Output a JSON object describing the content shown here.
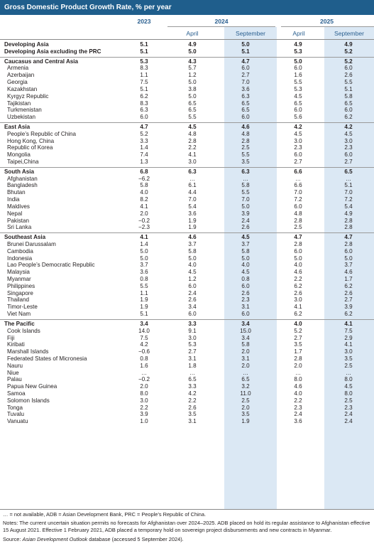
{
  "title": "Gross Domestic Product Growth Rate, % per year",
  "header": {
    "year_2023": "2023",
    "year_2024": "2024",
    "year_2025": "2025",
    "april_2024": "April",
    "september_2024": "September",
    "april_2025": "April",
    "september_2025": "September"
  },
  "groups": [
    {
      "rows": [
        {
          "name": "Developing Asia",
          "bold": true,
          "values": [
            "5.1",
            "4.9",
            "5.0",
            "4.9",
            "4.9"
          ]
        },
        {
          "name": "Developing Asia excluding the PRC",
          "bold": true,
          "values": [
            "5.1",
            "5.0",
            "5.1",
            "5.3",
            "5.2"
          ]
        }
      ]
    },
    {
      "rows": [
        {
          "name": "Caucasus and Central Asia",
          "bold": true,
          "values": [
            "5.3",
            "4.3",
            "4.7",
            "5.0",
            "5.2"
          ]
        },
        {
          "name": "Armenia",
          "values": [
            "8.3",
            "5.7",
            "6.0",
            "6.0",
            "6.0"
          ]
        },
        {
          "name": "Azerbaijan",
          "values": [
            "1.1",
            "1.2",
            "2.7",
            "1.6",
            "2.6"
          ]
        },
        {
          "name": "Georgia",
          "values": [
            "7.5",
            "5.0",
            "7.0",
            "5.5",
            "5.5"
          ]
        },
        {
          "name": "Kazakhstan",
          "values": [
            "5.1",
            "3.8",
            "3.6",
            "5.3",
            "5.1"
          ]
        },
        {
          "name": "Kyrgyz Republic",
          "values": [
            "6.2",
            "5.0",
            "6.3",
            "4.5",
            "5.8"
          ]
        },
        {
          "name": "Tajikistan",
          "values": [
            "8.3",
            "6.5",
            "6.5",
            "6.5",
            "6.5"
          ]
        },
        {
          "name": "Turkmenistan",
          "values": [
            "6.3",
            "6.5",
            "6.5",
            "6.0",
            "6.0"
          ]
        },
        {
          "name": "Uzbekistan",
          "values": [
            "6.0",
            "5.5",
            "6.0",
            "5.6",
            "6.2"
          ]
        }
      ]
    },
    {
      "rows": [
        {
          "name": "East Asia",
          "bold": true,
          "values": [
            "4.7",
            "4.5",
            "4.6",
            "4.2",
            "4.2"
          ]
        },
        {
          "name": "People’s Republic of China",
          "values": [
            "5.2",
            "4.8",
            "4.8",
            "4.5",
            "4.5"
          ]
        },
        {
          "name": "Hong Kong, China",
          "values": [
            "3.3",
            "2.8",
            "2.8",
            "3.0",
            "3.0"
          ]
        },
        {
          "name": "Republic of Korea",
          "values": [
            "1.4",
            "2.2",
            "2.5",
            "2.3",
            "2.3"
          ]
        },
        {
          "name": "Mongolia",
          "values": [
            "7.4",
            "4.1",
            "5.5",
            "6.0",
            "6.0"
          ]
        },
        {
          "name": "Taipei,China",
          "values": [
            "1.3",
            "3.0",
            "3.5",
            "2.7",
            "2.7"
          ]
        }
      ]
    },
    {
      "rows": [
        {
          "name": "South Asia",
          "bold": true,
          "values": [
            "6.8",
            "6.3",
            "6.3",
            "6.6",
            "6.5"
          ]
        },
        {
          "name": "Afghanistan",
          "values": [
            "−6.2",
            "…",
            "…",
            "…",
            "…"
          ]
        },
        {
          "name": "Bangladesh",
          "values": [
            "5.8",
            "6.1",
            "5.8",
            "6.6",
            "5.1"
          ]
        },
        {
          "name": "Bhutan",
          "values": [
            "4.0",
            "4.4",
            "5.5",
            "7.0",
            "7.0"
          ]
        },
        {
          "name": "India",
          "values": [
            "8.2",
            "7.0",
            "7.0",
            "7.2",
            "7.2"
          ]
        },
        {
          "name": "Maldives",
          "values": [
            "4.1",
            "5.4",
            "5.0",
            "6.0",
            "5.4"
          ]
        },
        {
          "name": "Nepal",
          "values": [
            "2.0",
            "3.6",
            "3.9",
            "4.8",
            "4.9"
          ]
        },
        {
          "name": "Pakistan",
          "values": [
            "−0.2",
            "1.9",
            "2.4",
            "2.8",
            "2.8"
          ]
        },
        {
          "name": "Sri Lanka",
          "values": [
            "−2.3",
            "1.9",
            "2.6",
            "2.5",
            "2.8"
          ]
        }
      ]
    },
    {
      "rows": [
        {
          "name": "Southeast Asia",
          "bold": true,
          "values": [
            "4.1",
            "4.6",
            "4.5",
            "4.7",
            "4.7"
          ]
        },
        {
          "name": "Brunei Darussalam",
          "values": [
            "1.4",
            "3.7",
            "3.7",
            "2.8",
            "2.8"
          ]
        },
        {
          "name": "Cambodia",
          "values": [
            "5.0",
            "5.8",
            "5.8",
            "6.0",
            "6.0"
          ]
        },
        {
          "name": "Indonesia",
          "values": [
            "5.0",
            "5.0",
            "5.0",
            "5.0",
            "5.0"
          ]
        },
        {
          "name": "Lao People’s Democratic Republic",
          "values": [
            "3.7",
            "4.0",
            "4.0",
            "4.0",
            "3.7"
          ]
        },
        {
          "name": "Malaysia",
          "values": [
            "3.6",
            "4.5",
            "4.5",
            "4.6",
            "4.6"
          ]
        },
        {
          "name": "Myanmar",
          "values": [
            "0.8",
            "1.2",
            "0.8",
            "2.2",
            "1.7"
          ]
        },
        {
          "name": "Philippines",
          "values": [
            "5.5",
            "6.0",
            "6.0",
            "6.2",
            "6.2"
          ]
        },
        {
          "name": "Singapore",
          "values": [
            "1.1",
            "2.4",
            "2.6",
            "2.6",
            "2.6"
          ]
        },
        {
          "name": "Thailand",
          "values": [
            "1.9",
            "2.6",
            "2.3",
            "3.0",
            "2.7"
          ]
        },
        {
          "name": "Timor-Leste",
          "values": [
            "1.9",
            "3.4",
            "3.1",
            "4.1",
            "3.9"
          ]
        },
        {
          "name": "Viet Nam",
          "values": [
            "5.1",
            "6.0",
            "6.0",
            "6.2",
            "6.2"
          ]
        }
      ]
    },
    {
      "rows": [
        {
          "name": "The Pacific",
          "bold": true,
          "values": [
            "3.4",
            "3.3",
            "3.4",
            "4.0",
            "4.1"
          ]
        },
        {
          "name": "Cook Islands",
          "values": [
            "14.0",
            "9.1",
            "15.0",
            "5.2",
            "7.5"
          ]
        },
        {
          "name": "Fiji",
          "values": [
            "7.5",
            "3.0",
            "3.4",
            "2.7",
            "2.9"
          ]
        },
        {
          "name": "Kiribati",
          "values": [
            "4.2",
            "5.3",
            "5.8",
            "3.5",
            "4.1"
          ]
        },
        {
          "name": "Marshall Islands",
          "values": [
            "−0.6",
            "2.7",
            "2.0",
            "1.7",
            "3.0"
          ]
        },
        {
          "name": "Federated States of Micronesia",
          "values": [
            "0.8",
            "3.1",
            "3.1",
            "2.8",
            "3.5"
          ]
        },
        {
          "name": "Nauru",
          "values": [
            "1.6",
            "1.8",
            "2.0",
            "2.0",
            "2.5"
          ]
        },
        {
          "name": "Niue",
          "values": [
            "…",
            "…",
            "…",
            "…",
            "…"
          ]
        },
        {
          "name": "Palau",
          "values": [
            "−0.2",
            "6.5",
            "6.5",
            "8.0",
            "8.0"
          ]
        },
        {
          "name": "Papua New Guinea",
          "values": [
            "2.0",
            "3.3",
            "3.2",
            "4.6",
            "4.5"
          ]
        },
        {
          "name": "Samoa",
          "values": [
            "8.0",
            "4.2",
            "11.0",
            "4.0",
            "8.0"
          ]
        },
        {
          "name": "Solomon Islands",
          "values": [
            "3.0",
            "2.2",
            "2.5",
            "2.2",
            "2.5"
          ]
        },
        {
          "name": "Tonga",
          "values": [
            "2.2",
            "2.6",
            "2.0",
            "2.3",
            "2.3"
          ]
        },
        {
          "name": "Tuvalu",
          "values": [
            "3.9",
            "3.5",
            "3.5",
            "2.4",
            "2.4"
          ]
        },
        {
          "name": "Vanuatu",
          "values": [
            "1.0",
            "3.1",
            "1.9",
            "3.6",
            "2.4"
          ]
        }
      ]
    }
  ],
  "footnotes": {
    "abbrev": "… = not available, ADB = Asian Development Bank, PRC = People’s Republic of China.",
    "notes": "Notes: The current uncertain situation permits no forecasts for Afghanistan over 2024–2025. ADB placed on hold its regular assistance to Afghanistan effective 15 August 2021. Effective 1 February 2021, ADB placed a temporary hold on sovereign project disbursements and new contracts in Myanmar.",
    "source_label": "Source: ",
    "source_italic": "Asian Development Outlook",
    "source_rest": " database (accessed 5 September 2024)."
  },
  "colors": {
    "title_bg": "#1f5e8c",
    "header_text": "#2a5f8f",
    "september_shade": "#dbe8f4"
  }
}
